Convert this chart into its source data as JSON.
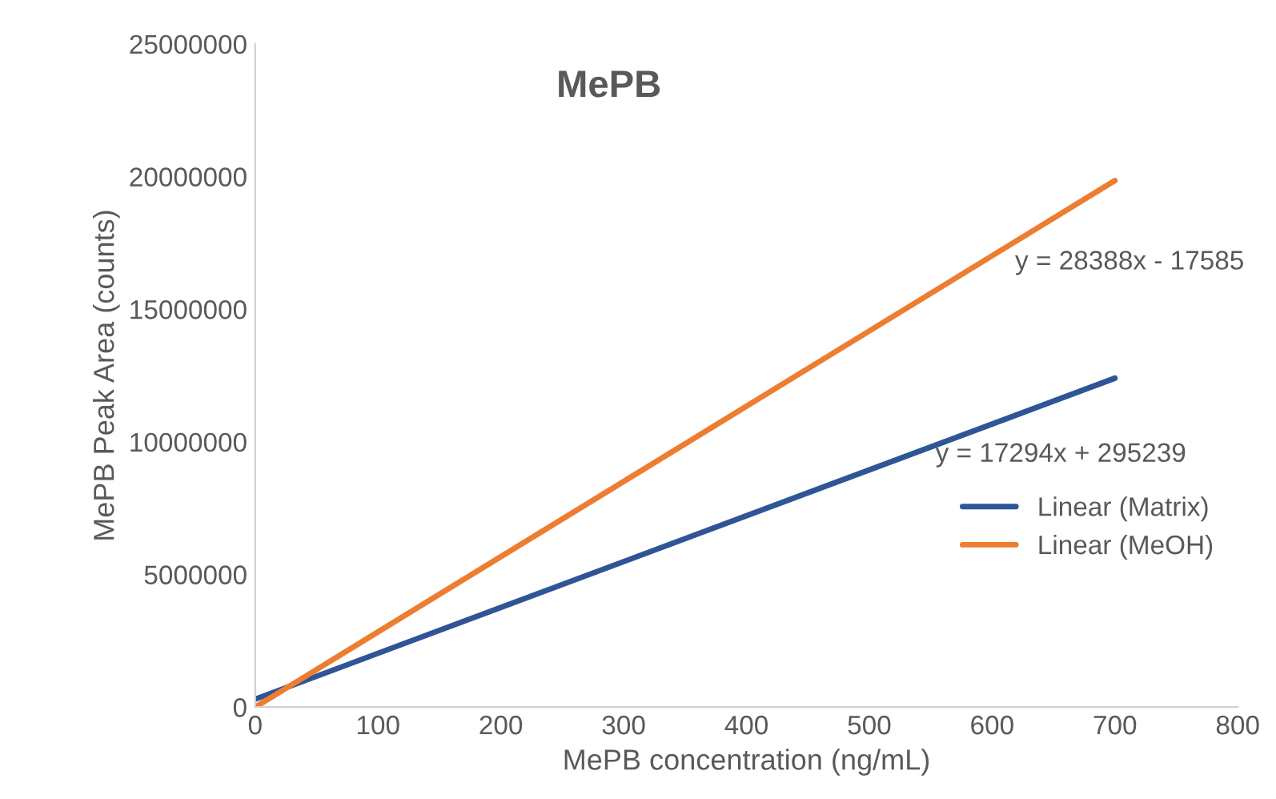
{
  "chart_data": {
    "type": "line",
    "title": "MePB",
    "xlabel": "MePB concentration (ng/mL)",
    "ylabel": "MePB Peak Area (counts)",
    "x": [
      0,
      700
    ],
    "series": [
      {
        "name": "Linear (Matrix)",
        "color": "#2f5597",
        "values": [
          300000,
          12400000
        ]
      },
      {
        "name": "Linear (MeOH)",
        "color": "#ed7d31",
        "values": [
          0,
          19850000
        ]
      }
    ],
    "annotations": [
      "y = 28388x - 17585",
      "y = 17294x + 295239"
    ],
    "xlim": [
      0,
      800
    ],
    "xticks": [
      0,
      100,
      200,
      300,
      400,
      500,
      600,
      700,
      800
    ],
    "ylim": [
      0,
      25000000
    ],
    "yticks": [
      0,
      5000000,
      10000000,
      15000000,
      20000000,
      25000000
    ],
    "grid": false,
    "legend": "right",
    "marker": "none",
    "line_style": "solid"
  }
}
